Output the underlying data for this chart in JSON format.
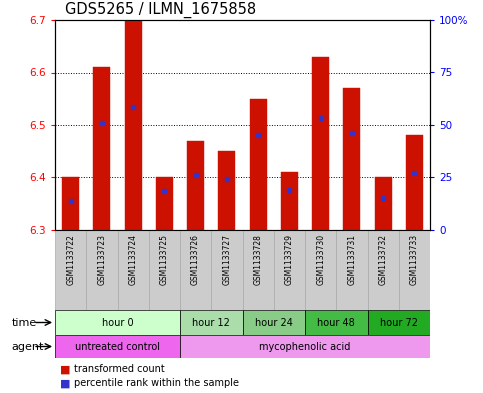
{
  "title": "GDS5265 / ILMN_1675858",
  "samples": [
    "GSM1133722",
    "GSM1133723",
    "GSM1133724",
    "GSM1133725",
    "GSM1133726",
    "GSM1133727",
    "GSM1133728",
    "GSM1133729",
    "GSM1133730",
    "GSM1133731",
    "GSM1133732",
    "GSM1133733"
  ],
  "bar_bottoms": [
    6.3,
    6.3,
    6.3,
    6.3,
    6.3,
    6.3,
    6.3,
    6.3,
    6.3,
    6.3,
    6.3,
    6.3
  ],
  "bar_tops": [
    6.4,
    6.61,
    6.7,
    6.4,
    6.47,
    6.45,
    6.55,
    6.41,
    6.63,
    6.57,
    6.4,
    6.48
  ],
  "blue_vals": [
    6.355,
    6.503,
    6.535,
    6.375,
    6.405,
    6.398,
    6.481,
    6.377,
    6.513,
    6.484,
    6.36,
    6.408
  ],
  "ylim": [
    6.3,
    6.7
  ],
  "yticks_left": [
    6.3,
    6.4,
    6.5,
    6.6,
    6.7
  ],
  "yticks_right_vals": [
    0,
    25,
    50,
    75,
    100
  ],
  "yticks_right_labels": [
    "0",
    "25",
    "50",
    "75",
    "100%"
  ],
  "bar_color": "#cc1100",
  "blue_color": "#3333cc",
  "time_groups": [
    {
      "label": "hour 0",
      "start": 0,
      "end": 4,
      "color": "#ccffcc"
    },
    {
      "label": "hour 12",
      "start": 4,
      "end": 6,
      "color": "#aaddaa"
    },
    {
      "label": "hour 24",
      "start": 6,
      "end": 8,
      "color": "#88cc88"
    },
    {
      "label": "hour 48",
      "start": 8,
      "end": 10,
      "color": "#44bb44"
    },
    {
      "label": "hour 72",
      "start": 10,
      "end": 12,
      "color": "#22aa22"
    }
  ],
  "agent_groups": [
    {
      "label": "untreated control",
      "start": 0,
      "end": 4,
      "color": "#ee66ee"
    },
    {
      "label": "mycophenolic acid",
      "start": 4,
      "end": 12,
      "color": "#ee99ee"
    }
  ],
  "legend_items": [
    {
      "label": "transformed count",
      "color": "#cc1100"
    },
    {
      "label": "percentile rank within the sample",
      "color": "#3333cc"
    }
  ],
  "bg_color": "#ffffff",
  "bar_width": 0.55,
  "sample_bg": "#cccccc",
  "tick_fontsize": 7.5,
  "title_fontsize": 10.5
}
